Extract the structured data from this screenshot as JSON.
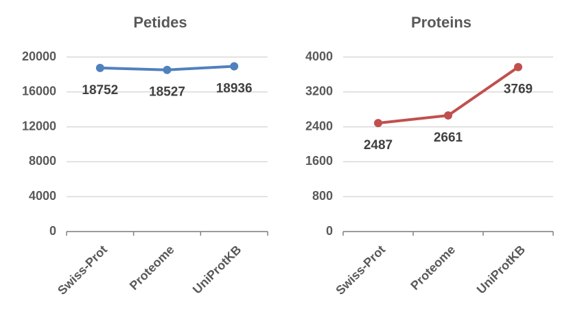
{
  "chart_data": [
    {
      "type": "line",
      "title": "Petides",
      "categories": [
        "Swiss-Prot",
        "Proteome",
        "UniProtKB"
      ],
      "values": [
        18752,
        18527,
        18936
      ],
      "color": "#4f81bd",
      "ylim": [
        0,
        20000
      ],
      "yticks": [
        0,
        4000,
        8000,
        12000,
        16000,
        20000
      ],
      "grid": true
    },
    {
      "type": "line",
      "title": "Proteins",
      "categories": [
        "Swiss-Prot",
        "Proteome",
        "UniProtKB"
      ],
      "values": [
        2487,
        2661,
        3769
      ],
      "color": "#c0504d",
      "ylim": [
        0,
        4000
      ],
      "yticks": [
        0,
        800,
        1600,
        2400,
        3200,
        4000
      ],
      "grid": true
    }
  ]
}
